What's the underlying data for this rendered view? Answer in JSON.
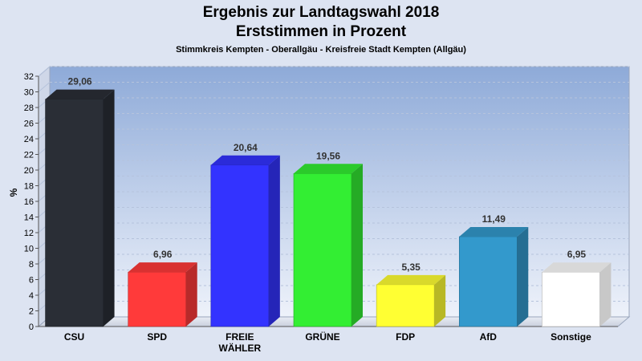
{
  "chart_data": {
    "type": "bar",
    "title": "Ergebnis zur Landtagswahl 2018",
    "title2": "Erststimmen in Prozent",
    "subtitle": "Stimmkreis Kempten - Oberallgäu - Kreisfreie Stadt Kempten (Allgäu)",
    "ylabel": "%",
    "ylim": [
      0,
      32
    ],
    "yticks": [
      0,
      2,
      4,
      6,
      8,
      10,
      12,
      14,
      16,
      18,
      20,
      22,
      24,
      26,
      28,
      30,
      32
    ],
    "grid": true,
    "categories": [
      "CSU",
      "SPD",
      "FREIE WÄHLER",
      "GRÜNE",
      "FDP",
      "AfD",
      "Sonstige"
    ],
    "category_lines": [
      [
        "CSU"
      ],
      [
        "SPD"
      ],
      [
        "FREIE",
        "WÄHLER"
      ],
      [
        "GRÜNE"
      ],
      [
        "FDP"
      ],
      [
        "AfD"
      ],
      [
        "Sonstige"
      ]
    ],
    "values": [
      29.06,
      6.96,
      20.64,
      19.56,
      5.35,
      11.49,
      6.95
    ],
    "value_labels": [
      "29,06",
      "6,96",
      "20,64",
      "19,56",
      "5,35",
      "11,49",
      "6,95"
    ],
    "colors": [
      "#2a2e36",
      "#ff3a3a",
      "#3333ff",
      "#33ee33",
      "#ffff33",
      "#3399cc",
      "#ffffff"
    ]
  }
}
